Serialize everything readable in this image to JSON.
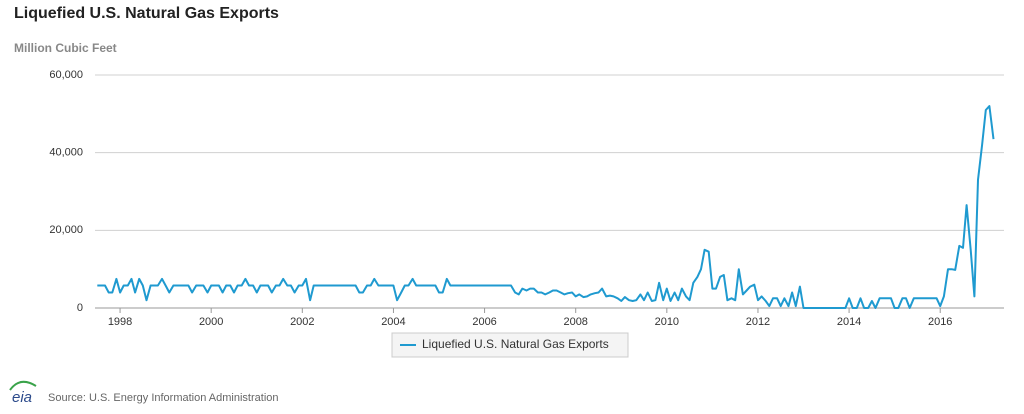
{
  "chart_data": {
    "type": "line",
    "title": "Liquefied U.S. Natural Gas Exports",
    "y_label": "Million Cubic Feet",
    "source": "Source: U.S. Energy Information Administration",
    "logo": "eia",
    "x": [
      1997.5,
      1997.58,
      1997.67,
      1997.75,
      1997.83,
      1997.92,
      1998,
      1998.08,
      1998.17,
      1998.25,
      1998.33,
      1998.42,
      1998.5,
      1998.58,
      1998.67,
      1998.75,
      1998.83,
      1998.92,
      1999,
      1999.08,
      1999.17,
      1999.25,
      1999.33,
      1999.42,
      1999.5,
      1999.58,
      1999.67,
      1999.75,
      1999.83,
      1999.92,
      2000,
      2000.08,
      2000.17,
      2000.25,
      2000.33,
      2000.42,
      2000.5,
      2000.58,
      2000.67,
      2000.75,
      2000.83,
      2000.92,
      2001,
      2001.08,
      2001.17,
      2001.25,
      2001.33,
      2001.42,
      2001.5,
      2001.58,
      2001.67,
      2001.75,
      2001.83,
      2001.92,
      2002,
      2002.08,
      2002.17,
      2002.25,
      2002.33,
      2002.42,
      2002.5,
      2002.58,
      2002.67,
      2002.75,
      2002.83,
      2002.92,
      2003,
      2003.08,
      2003.17,
      2003.25,
      2003.33,
      2003.42,
      2003.5,
      2003.58,
      2003.67,
      2003.75,
      2003.83,
      2003.92,
      2004,
      2004.08,
      2004.17,
      2004.25,
      2004.33,
      2004.42,
      2004.5,
      2004.58,
      2004.67,
      2004.75,
      2004.83,
      2004.92,
      2005,
      2005.08,
      2005.17,
      2005.25,
      2005.33,
      2005.42,
      2005.5,
      2005.58,
      2005.67,
      2005.75,
      2005.83,
      2005.92,
      2006,
      2006.08,
      2006.17,
      2006.25,
      2006.33,
      2006.42,
      2006.5,
      2006.58,
      2006.67,
      2006.75,
      2006.83,
      2006.92,
      2007,
      2007.08,
      2007.17,
      2007.25,
      2007.33,
      2007.42,
      2007.5,
      2007.58,
      2007.67,
      2007.75,
      2007.83,
      2007.92,
      2008,
      2008.08,
      2008.17,
      2008.25,
      2008.33,
      2008.42,
      2008.5,
      2008.58,
      2008.67,
      2008.75,
      2008.83,
      2008.92,
      2009,
      2009.08,
      2009.17,
      2009.25,
      2009.33,
      2009.42,
      2009.5,
      2009.58,
      2009.67,
      2009.75,
      2009.83,
      2009.92,
      2010,
      2010.08,
      2010.17,
      2010.25,
      2010.33,
      2010.42,
      2010.5,
      2010.58,
      2010.67,
      2010.75,
      2010.83,
      2010.92,
      2011,
      2011.08,
      2011.17,
      2011.25,
      2011.33,
      2011.42,
      2011.5,
      2011.58,
      2011.67,
      2011.75,
      2011.83,
      2011.92,
      2012,
      2012.08,
      2012.17,
      2012.25,
      2012.33,
      2012.42,
      2012.5,
      2012.58,
      2012.67,
      2012.75,
      2012.83,
      2012.92,
      2013,
      2013.08,
      2013.17,
      2013.25,
      2013.33,
      2013.42,
      2013.5,
      2013.58,
      2013.67,
      2013.75,
      2013.83,
      2013.92,
      2014,
      2014.08,
      2014.17,
      2014.25,
      2014.33,
      2014.42,
      2014.5,
      2014.58,
      2014.67,
      2014.75,
      2014.83,
      2014.92,
      2015,
      2015.08,
      2015.17,
      2015.25,
      2015.33,
      2015.42,
      2015.5,
      2015.58,
      2015.67,
      2015.75,
      2015.83,
      2015.92,
      2016,
      2016.08,
      2016.17,
      2016.25,
      2016.33,
      2016.42,
      2016.5,
      2016.58,
      2016.67,
      2016.75,
      2016.83,
      2016.92,
      2017,
      2017.08,
      2017.17
    ],
    "series": [
      {
        "name": "Liquefied U.S. Natural Gas Exports",
        "color": "#1f9ad0",
        "values": [
          5800,
          5800,
          5800,
          4000,
          4000,
          7500,
          4000,
          5800,
          5800,
          7500,
          4000,
          7500,
          5800,
          2000,
          5800,
          5800,
          5800,
          7500,
          5800,
          4000,
          5800,
          5800,
          5800,
          5800,
          5800,
          4000,
          5800,
          5800,
          5800,
          4000,
          5800,
          5800,
          5800,
          4000,
          5800,
          5800,
          4000,
          5800,
          5800,
          7500,
          5800,
          5800,
          4000,
          5800,
          5800,
          5800,
          4000,
          5800,
          5800,
          7500,
          5800,
          5800,
          4000,
          5800,
          5800,
          7500,
          2000,
          5800,
          5800,
          5800,
          5800,
          5800,
          5800,
          5800,
          5800,
          5800,
          5800,
          5800,
          5800,
          4000,
          4000,
          5800,
          5800,
          7500,
          5800,
          5800,
          5800,
          5800,
          5800,
          2000,
          4000,
          5800,
          5800,
          7500,
          5800,
          5800,
          5800,
          5800,
          5800,
          5800,
          4000,
          4000,
          7500,
          5800,
          5800,
          5800,
          5800,
          5800,
          5800,
          5800,
          5800,
          5800,
          5800,
          5800,
          5800,
          5800,
          5800,
          5800,
          5800,
          5800,
          4000,
          3500,
          5000,
          4500,
          5000,
          5000,
          4000,
          4000,
          3500,
          4000,
          4500,
          4500,
          4000,
          3500,
          3800,
          4000,
          3000,
          3500,
          2800,
          3000,
          3500,
          3800,
          4000,
          5000,
          3000,
          3200,
          3000,
          2500,
          1800,
          2800,
          2000,
          1800,
          2000,
          3500,
          2000,
          4000,
          1800,
          2000,
          6500,
          2000,
          5000,
          1800,
          4000,
          2000,
          5000,
          3000,
          2000,
          6500,
          8000,
          10000,
          15000,
          14500,
          5000,
          5000,
          8000,
          8500,
          2000,
          2500,
          2000,
          10000,
          3500,
          4500,
          5500,
          6000,
          2000,
          3000,
          1800,
          500,
          2500,
          2500,
          500,
          2500,
          500,
          4000,
          500,
          5500,
          0,
          0,
          0,
          0,
          0,
          0,
          0,
          0,
          0,
          0,
          0,
          0,
          2500,
          0,
          0,
          2500,
          0,
          0,
          1800,
          0,
          2500,
          2500,
          2500,
          2500,
          0,
          0,
          2500,
          2500,
          0,
          2500,
          2500,
          2500,
          2500,
          2500,
          2500,
          2500,
          500,
          3000,
          10000,
          10000,
          9800,
          16000,
          15500,
          26500,
          15000,
          3000,
          33000,
          42000,
          51000,
          52000,
          43500
        ]
      }
    ],
    "xlim": [
      1997.45,
      2017.4
    ],
    "xticks": [
      1998,
      2000,
      2002,
      2004,
      2006,
      2008,
      2010,
      2012,
      2014,
      2016
    ],
    "ylim": [
      0,
      60000
    ],
    "yticks": [
      0,
      {
        "value": 20000,
        "label": "20,000"
      },
      {
        "value": 40000,
        "label": "40,000"
      },
      {
        "value": 60000,
        "label": "60,000"
      }
    ],
    "grid": true,
    "legend": "bottom"
  }
}
